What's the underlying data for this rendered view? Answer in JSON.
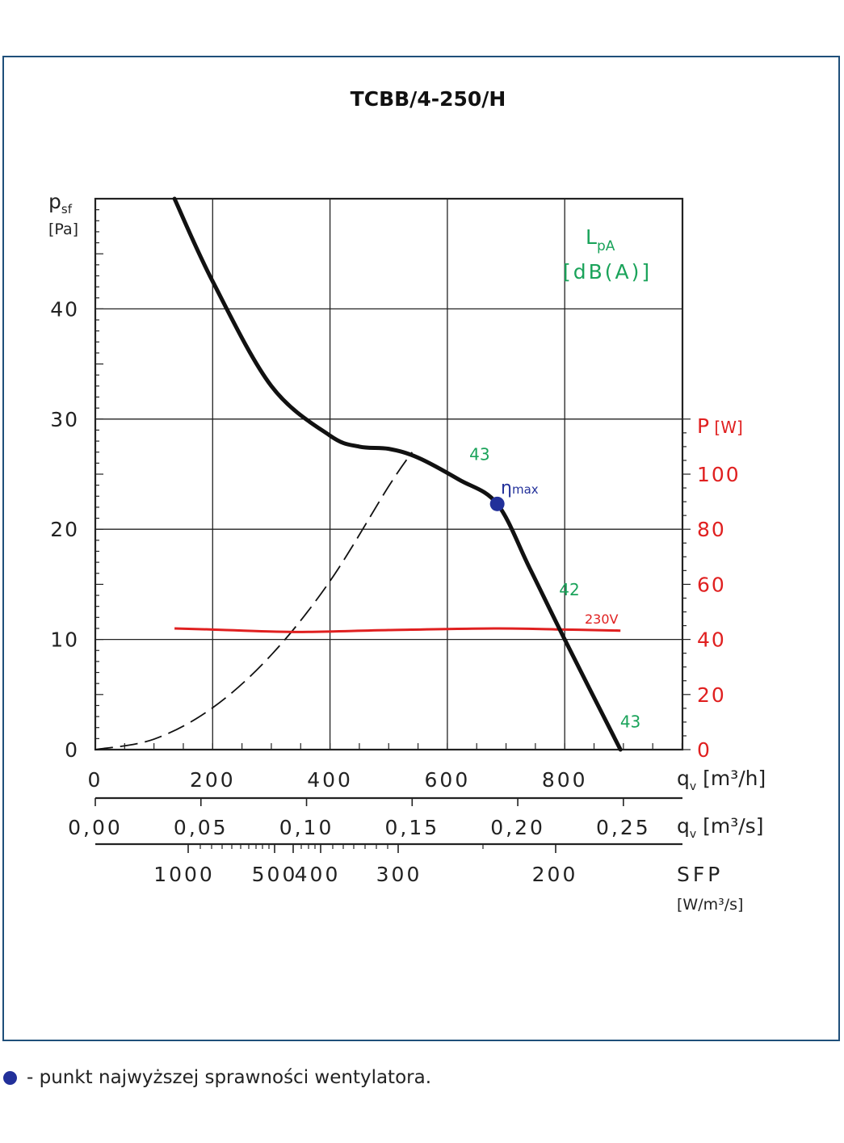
{
  "chart_data": {
    "type": "line",
    "title": "TCBB/4-250/H",
    "y_left": {
      "label": "p",
      "label_sub": "sf",
      "unit": "[Pa]",
      "range": [
        0,
        50
      ],
      "ticks": [
        "0",
        "10",
        "20",
        "30",
        "40"
      ]
    },
    "y_right": {
      "label": "P",
      "unit": "[W]",
      "range": [
        0,
        150
      ],
      "ticks": [
        "0",
        "20",
        "40",
        "60",
        "80",
        "100"
      ]
    },
    "x_m3h": {
      "label": "q",
      "label_sub": "v",
      "unit": "[m³/h]",
      "range": [
        0,
        1000
      ],
      "ticks": [
        "0",
        "200",
        "400",
        "600",
        "800"
      ]
    },
    "x_m3s": {
      "label": "q",
      "label_sub": "v",
      "unit": "[m³/s]",
      "ticks": [
        "0,00",
        "0,05",
        "0,10",
        "0,15",
        "0,20",
        "0,25"
      ]
    },
    "sfp": {
      "label": "SFP",
      "unit": "[W/m³/s]",
      "ticks": [
        "1000",
        "500",
        "400",
        "300",
        "200"
      ]
    },
    "lpa_label": "L",
    "lpa_sub": "pA",
    "lpa_unit": "[dB(A)]",
    "series": [
      {
        "role": "pressure",
        "x": [
          135,
          200,
          300,
          400,
          450,
          500,
          550,
          620,
          685,
          740,
          800,
          895
        ],
        "y": [
          50,
          42.5,
          33,
          28.5,
          27.5,
          27.3,
          26.5,
          24.5,
          22.3,
          16.5,
          10,
          0
        ]
      },
      {
        "role": "system",
        "x": [
          0,
          100,
          200,
          300,
          400,
          500,
          540
        ],
        "y": [
          0,
          0.95,
          3.8,
          8.6,
          15.3,
          23.9,
          27
        ]
      },
      {
        "name": "230V",
        "role": "power",
        "x": [
          135,
          200,
          340,
          500,
          680,
          800,
          895
        ],
        "y": [
          44,
          43.6,
          42.7,
          43.4,
          44,
          43.6,
          43.2
        ]
      }
    ],
    "lpa_points": [
      {
        "label": "43",
        "x": 655,
        "y": 26.3
      },
      {
        "label": "42",
        "x": 808,
        "y": 14
      },
      {
        "label": "43",
        "x": 912,
        "y": 2
      }
    ],
    "eta_max": {
      "label": "η",
      "sub": "max",
      "x": 685,
      "y": 22.3
    },
    "colors": {
      "pressure": "#111111",
      "system": "#111111",
      "power": "#e02020",
      "lpa": "#1aa35a",
      "eta": "#22309a",
      "frame": "#1f4f7a"
    }
  },
  "footer_note": "- punkt najwyższej sprawności wentylatora."
}
